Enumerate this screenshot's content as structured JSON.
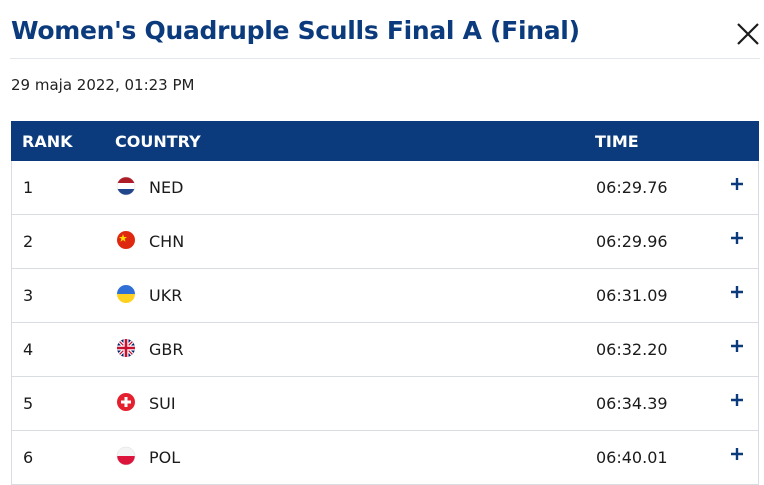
{
  "header": {
    "title": "Women's Quadruple Sculls Final A (Final)",
    "date": "29 maja 2022, 01:23 PM"
  },
  "table": {
    "columns": [
      "RANK",
      "COUNTRY",
      "TIME"
    ],
    "rows": [
      [
        "1",
        "NED",
        "06:29.76"
      ],
      [
        "2",
        "CHN",
        "06:29.96"
      ],
      [
        "3",
        "UKR",
        "06:31.09"
      ],
      [
        "4",
        "GBR",
        "06:32.20"
      ],
      [
        "5",
        "SUI",
        "06:34.39"
      ],
      [
        "6",
        "POL",
        "06:40.01"
      ]
    ]
  }
}
